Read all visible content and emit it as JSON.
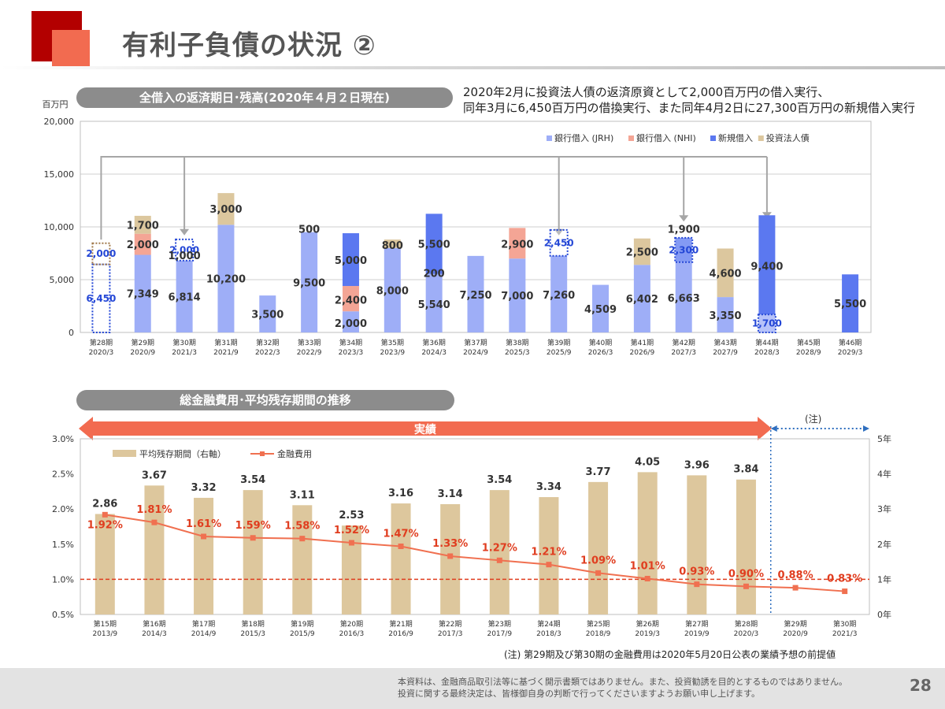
{
  "slide": {
    "title": "有利子負債の状況 ②",
    "page_number": "28",
    "footer_line1": "本資料は、金融商品取引法等に基づく開示書類ではありません。また、投資勧誘を目的とするものではありません。",
    "footer_line2": "投資に関する最終決定は、皆様御自身の判断で行ってくださいますようお願い申し上げます。"
  },
  "section1": {
    "label": "全借入の返済期日･残高(2020年４月２日現在)",
    "note_line1": "2020年2月に投資法人債の返済原資として2,000百万円の借入実行、",
    "note_line2": "同年3月に6,450百万円の借換実行、また同年4月2日に27,300百万円の新規借入実行",
    "unit": "百万円"
  },
  "section2": {
    "label": "総金融費用･平均残存期間の推移",
    "actual_label": "実績",
    "forecast_label": "(注)",
    "footnote": "(注) 第29期及び第30期の金融費用は2020年5月20日公表の業績予想の前提値"
  },
  "colors": {
    "jrh": "#9eaef7",
    "nhi": "#f4a595",
    "new": "#5b78f0",
    "bond": "#dcc79e",
    "line": "#f07050",
    "label_red": "#e03d1f",
    "label_blue": "#2447d6",
    "avg_bar": "#ddc79d",
    "arrow": "#f26b50"
  },
  "chart_data": [
    {
      "type": "bar",
      "stacked": true,
      "title": "全借入の返済期日･残高(2020年４月２日現在)",
      "ylabel": "百万円",
      "ylim": [
        0,
        20000
      ],
      "yticks": [
        "0",
        "5,000",
        "10,000",
        "15,000",
        "20,000"
      ],
      "grid": true,
      "legend_position": "top-right",
      "categories": [
        {
          "period": "第28期",
          "date": "2020/3"
        },
        {
          "period": "第29期",
          "date": "2020/9"
        },
        {
          "period": "第30期",
          "date": "2021/3"
        },
        {
          "period": "第31期",
          "date": "2021/9"
        },
        {
          "period": "第32期",
          "date": "2022/3"
        },
        {
          "period": "第33期",
          "date": "2022/9"
        },
        {
          "period": "第34期",
          "date": "2023/3"
        },
        {
          "period": "第35期",
          "date": "2023/9"
        },
        {
          "period": "第36期",
          "date": "2024/3"
        },
        {
          "period": "第37期",
          "date": "2024/9"
        },
        {
          "period": "第38期",
          "date": "2025/3"
        },
        {
          "period": "第39期",
          "date": "2025/9"
        },
        {
          "period": "第40期",
          "date": "2026/3"
        },
        {
          "period": "第41期",
          "date": "2026/9"
        },
        {
          "period": "第42期",
          "date": "2027/3"
        },
        {
          "period": "第43期",
          "date": "2027/9"
        },
        {
          "period": "第44期",
          "date": "2028/3"
        },
        {
          "period": "第45期",
          "date": "2028/9"
        },
        {
          "period": "第46期",
          "date": "2029/3"
        }
      ],
      "series": [
        {
          "name": "銀行借入 (JRH)",
          "color_key": "jrh",
          "values": [
            0,
            7349,
            6814,
            10200,
            3500,
            9500,
            2000,
            8000,
            5540,
            7250,
            7000,
            7260,
            4509,
            6402,
            6663,
            3350,
            1700,
            0,
            0
          ]
        },
        {
          "name": "銀行借入 (NHI)",
          "color_key": "nhi",
          "values": [
            0,
            2000,
            0,
            0,
            0,
            0,
            2400,
            0,
            0,
            0,
            2900,
            0,
            0,
            0,
            0,
            0,
            0,
            0,
            0
          ]
        },
        {
          "name": "新規借入",
          "color_key": "new",
          "values": [
            0,
            0,
            0,
            0,
            0,
            0,
            5000,
            0,
            5700,
            0,
            0,
            0,
            0,
            0,
            2300,
            0,
            9400,
            0,
            5500
          ]
        },
        {
          "name": "投資法人債",
          "color_key": "bond",
          "values": [
            0,
            1700,
            0,
            3000,
            0,
            0,
            0,
            800,
            0,
            0,
            0,
            0,
            0,
            2500,
            0,
            4600,
            0,
            0,
            0
          ]
        }
      ],
      "refinanced_outlines": [
        {
          "category_index": 0,
          "values": [
            6450,
            2000
          ],
          "labels": [
            "6,450",
            "2,000"
          ]
        },
        {
          "category_index": 2,
          "values": [
            2000
          ],
          "labels": [
            "2,000"
          ]
        },
        {
          "category_index": 11,
          "values": [
            2450
          ],
          "labels": [
            "2,450"
          ]
        },
        {
          "category_index": 14,
          "values": [
            2300
          ],
          "labels": [
            "2,300"
          ]
        },
        {
          "category_index": 16,
          "values": [
            1700
          ],
          "labels": [
            "1,700"
          ]
        }
      ],
      "data_labels": [
        {
          "i": 1,
          "text": "7,349",
          "v": 3700
        },
        {
          "i": 1,
          "text": "2,000",
          "v": 8350
        },
        {
          "i": 1,
          "text": "1,700",
          "v": 10200
        },
        {
          "i": 2,
          "text": "6,814",
          "v": 3400
        },
        {
          "i": 2,
          "text": "1,000",
          "v": 7300
        },
        {
          "i": 3,
          "text": "10,200",
          "v": 5100
        },
        {
          "i": 3,
          "text": "3,000",
          "v": 11700
        },
        {
          "i": 4,
          "text": "3,500",
          "v": 1750
        },
        {
          "i": 5,
          "text": "9,500",
          "v": 4750
        },
        {
          "i": 5,
          "text": "500",
          "v": 9800
        },
        {
          "i": 6,
          "text": "2,000",
          "v": 900
        },
        {
          "i": 6,
          "text": "2,400",
          "v": 3100
        },
        {
          "i": 6,
          "text": "5,000",
          "v": 6850
        },
        {
          "i": 7,
          "text": "8,000",
          "v": 4000
        },
        {
          "i": 7,
          "text": "800",
          "v": 8300
        },
        {
          "i": 8,
          "text": "5,540",
          "v": 2700
        },
        {
          "i": 8,
          "text": "200",
          "v": 5650
        },
        {
          "i": 8,
          "text": "5,500",
          "v": 8400
        },
        {
          "i": 9,
          "text": "7,250",
          "v": 3600
        },
        {
          "i": 10,
          "text": "7,000",
          "v": 3500
        },
        {
          "i": 10,
          "text": "2,900",
          "v": 8400
        },
        {
          "i": 11,
          "text": "7,260",
          "v": 3600
        },
        {
          "i": 12,
          "text": "4,509",
          "v": 2250
        },
        {
          "i": 13,
          "text": "6,402",
          "v": 3200
        },
        {
          "i": 13,
          "text": "2,500",
          "v": 7650
        },
        {
          "i": 14,
          "text": "6,663",
          "v": 3300
        },
        {
          "i": 14,
          "text": "1,900",
          "v": 9800
        },
        {
          "i": 15,
          "text": "3,350",
          "v": 1650
        },
        {
          "i": 15,
          "text": "4,600",
          "v": 5650
        },
        {
          "i": 16,
          "text": "9,400",
          "v": 6300
        },
        {
          "i": 18,
          "text": "5,500",
          "v": 2750
        }
      ]
    },
    {
      "type": "bar+line",
      "title": "総金融費用･平均残存期間の推移",
      "y_left_ticks": [
        "0.5%",
        "1.0%",
        "1.5%",
        "2.0%",
        "2.5%",
        "3.0%"
      ],
      "y_left_range": [
        0.5,
        3.0
      ],
      "y_right_ticks": [
        "0年",
        "1年",
        "2年",
        "3年",
        "4年",
        "5年"
      ],
      "y_right_range": [
        0,
        5
      ],
      "reference_line_pct": 1.0,
      "legend_position": "top-left",
      "categories": [
        {
          "period": "第15期",
          "date": "2013/9"
        },
        {
          "period": "第16期",
          "date": "2014/3"
        },
        {
          "period": "第17期",
          "date": "2014/9"
        },
        {
          "period": "第18期",
          "date": "2015/3"
        },
        {
          "period": "第19期",
          "date": "2015/9"
        },
        {
          "period": "第20期",
          "date": "2016/3"
        },
        {
          "period": "第21期",
          "date": "2016/9"
        },
        {
          "period": "第22期",
          "date": "2017/3"
        },
        {
          "period": "第23期",
          "date": "2017/9"
        },
        {
          "period": "第24期",
          "date": "2018/3"
        },
        {
          "period": "第25期",
          "date": "2018/9"
        },
        {
          "period": "第26期",
          "date": "2019/3"
        },
        {
          "period": "第27期",
          "date": "2019/9"
        },
        {
          "period": "第28期",
          "date": "2020/3"
        },
        {
          "period": "第29期",
          "date": "2020/9"
        },
        {
          "period": "第30期",
          "date": "2021/3"
        }
      ],
      "bar_series": {
        "name": "平均残存期間（右軸）",
        "values": [
          2.86,
          3.67,
          3.32,
          3.54,
          3.11,
          2.53,
          3.16,
          3.14,
          3.54,
          3.34,
          3.77,
          4.05,
          3.96,
          3.84,
          null,
          null
        ],
        "labels": [
          "2.86",
          "3.67",
          "3.32",
          "3.54",
          "3.11",
          "2.53",
          "3.16",
          "3.14",
          "3.54",
          "3.34",
          "3.77",
          "4.05",
          "3.96",
          "3.84",
          "",
          ""
        ]
      },
      "line_series": {
        "name": "金融費用",
        "values": [
          1.92,
          1.81,
          1.61,
          1.59,
          1.58,
          1.52,
          1.47,
          1.33,
          1.27,
          1.21,
          1.09,
          1.01,
          0.93,
          0.9,
          0.88,
          0.83
        ],
        "labels": [
          "1.92%",
          "1.81%",
          "1.61%",
          "1.59%",
          "1.58%",
          "1.52%",
          "1.47%",
          "1.33%",
          "1.27%",
          "1.21%",
          "1.09%",
          "1.01%",
          "0.93%",
          "0.90%",
          "0.88%",
          "0.83%"
        ]
      }
    }
  ]
}
